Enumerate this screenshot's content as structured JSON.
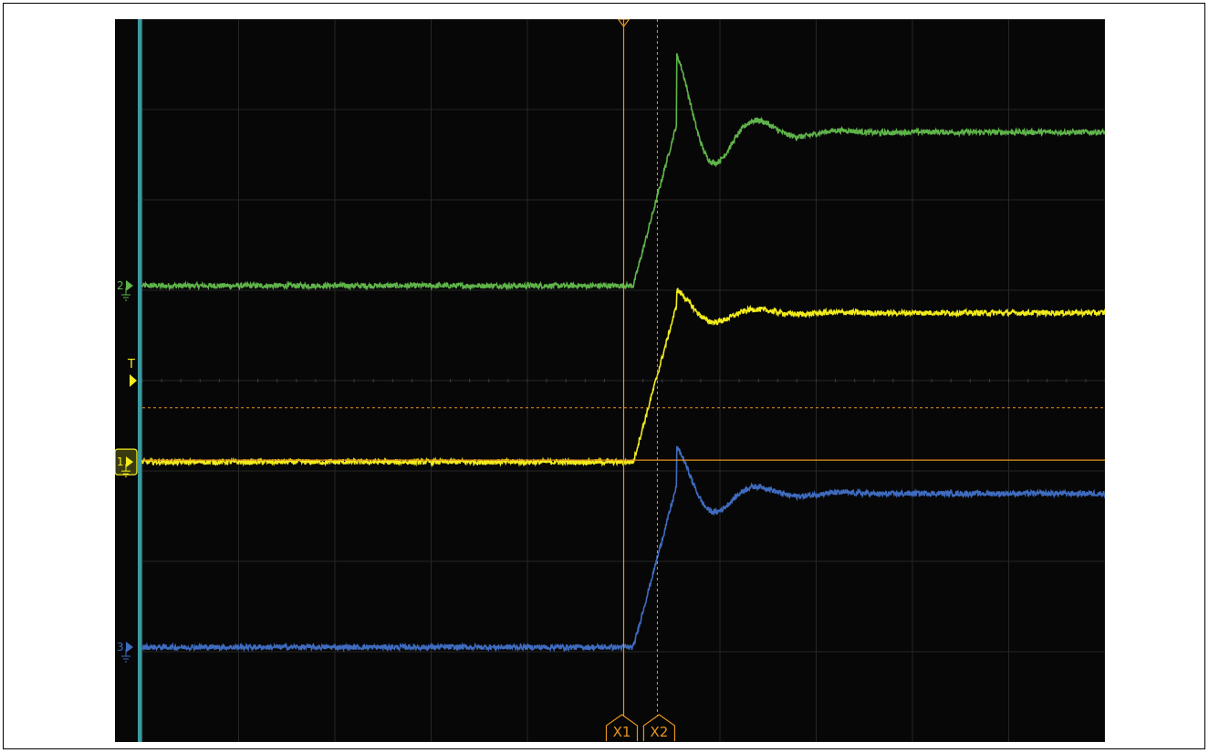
{
  "colors": {
    "background": "#070707",
    "grid": "#262626",
    "ch1": "#f2ec1c",
    "ch2": "#5fb44a",
    "ch3": "#3f6cc0",
    "cursor": "#e6941f",
    "left_strip": "#3a9aa0"
  },
  "channels": [
    {
      "id": "ch1",
      "label": "1",
      "color": "#f2ec1c"
    },
    {
      "id": "ch2",
      "label": "2",
      "color": "#5fb44a"
    },
    {
      "id": "ch3",
      "label": "3",
      "color": "#3f6cc0"
    }
  ],
  "trigger": {
    "label": "T"
  },
  "cursors": {
    "x1": {
      "label": "X1"
    },
    "x2": {
      "label": "X2"
    }
  },
  "chart_data": {
    "type": "line",
    "title": "",
    "xlabel": "",
    "ylabel": "",
    "x_range": [
      0,
      10
    ],
    "y_range": [
      -4,
      4
    ],
    "grid": true,
    "series": [
      {
        "name": "2",
        "baseline": 1.05,
        "step_start": 5.1,
        "step_level": 2.75,
        "overshoot_peak": 3.25,
        "noise": 0.02
      },
      {
        "name": "1",
        "baseline": -0.9,
        "step_start": 5.1,
        "step_level": 0.75,
        "overshoot_peak": 0.9,
        "noise": 0.02
      },
      {
        "name": "3",
        "baseline": -2.95,
        "step_start": 5.1,
        "step_level": -1.25,
        "overshoot_peak": -0.95,
        "noise": 0.02
      }
    ],
    "trigger_level": 0.0,
    "cursor_x1": 5.0,
    "cursor_x2": 5.35,
    "hline_solid": -0.88,
    "hline_dashed": -0.3
  }
}
